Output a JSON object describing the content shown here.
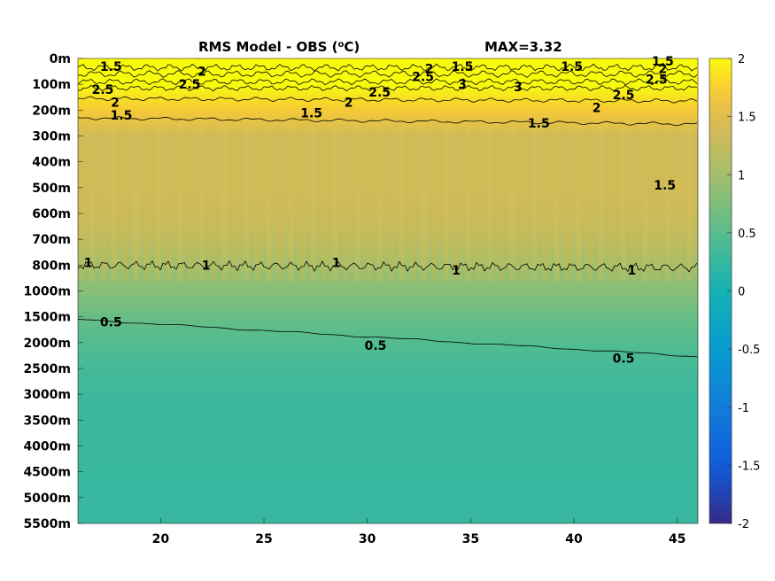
{
  "chart_data": {
    "type": "heatmap",
    "title_left": "RMS Model - OBS (",
    "title_unit_sup": "o",
    "title_unit_tail": "C)",
    "title_max": "MAX=3.32",
    "x_ticks": [
      "20",
      "25",
      "30",
      "35",
      "40",
      "45"
    ],
    "x_tick_values": [
      20,
      25,
      30,
      35,
      40,
      45
    ],
    "xlim": [
      16,
      46
    ],
    "y_ticks": [
      "0m",
      "100m",
      "200m",
      "300m",
      "400m",
      "500m",
      "600m",
      "700m",
      "800m",
      "1000m",
      "1500m",
      "2000m",
      "2500m",
      "3000m",
      "3500m",
      "4000m",
      "4500m",
      "5000m",
      "5500m"
    ],
    "colorbar": {
      "ticks": [
        "2",
        "1.5",
        "1",
        "0.5",
        "0",
        "-0.5",
        "-1",
        "-1.5",
        "-2"
      ],
      "tick_values": [
        2,
        1.5,
        1,
        0.5,
        0,
        -0.5,
        -1,
        -1.5,
        -2
      ],
      "clim": [
        -2,
        2
      ],
      "colormap": "parula"
    },
    "rms_profile": {
      "depth_levels": [
        "0m",
        "100m",
        "200m",
        "300m",
        "400m",
        "500m",
        "600m",
        "700m",
        "800m",
        "1000m",
        "1500m",
        "2000m",
        "2500m",
        "3000m",
        "3500m",
        "4000m",
        "4500m",
        "5000m",
        "5500m"
      ],
      "values": [
        2.2,
        2.6,
        1.7,
        1.35,
        1.35,
        1.35,
        1.3,
        1.2,
        1.0,
        0.8,
        0.6,
        0.45,
        0.35,
        0.3,
        0.28,
        0.27,
        0.26,
        0.25,
        0.25
      ]
    },
    "contour_labels": [
      {
        "text": "1.5",
        "x": 17.6,
        "depth_index": 0.3
      },
      {
        "text": "2",
        "x": 22.0,
        "depth_index": 0.5
      },
      {
        "text": "2.5",
        "x": 21.4,
        "depth_index": 1.0
      },
      {
        "text": "2.5",
        "x": 17.2,
        "depth_index": 1.2
      },
      {
        "text": "2",
        "x": 17.8,
        "depth_index": 1.7
      },
      {
        "text": "1.5",
        "x": 18.1,
        "depth_index": 2.2
      },
      {
        "text": "2.5",
        "x": 32.7,
        "depth_index": 0.7
      },
      {
        "text": "2",
        "x": 33.0,
        "depth_index": 0.4
      },
      {
        "text": "1.5",
        "x": 34.6,
        "depth_index": 0.3
      },
      {
        "text": "3",
        "x": 34.6,
        "depth_index": 1.0
      },
      {
        "text": "2.5",
        "x": 30.6,
        "depth_index": 1.3
      },
      {
        "text": "2",
        "x": 29.1,
        "depth_index": 1.7
      },
      {
        "text": "1.5",
        "x": 27.3,
        "depth_index": 2.1
      },
      {
        "text": "1.5",
        "x": 39.9,
        "depth_index": 0.3
      },
      {
        "text": "3",
        "x": 37.3,
        "depth_index": 1.1
      },
      {
        "text": "2.5",
        "x": 42.4,
        "depth_index": 1.4
      },
      {
        "text": "2",
        "x": 41.1,
        "depth_index": 1.9
      },
      {
        "text": "1.5",
        "x": 38.3,
        "depth_index": 2.5
      },
      {
        "text": "1.5",
        "x": 44.3,
        "depth_index": 0.1
      },
      {
        "text": "2",
        "x": 44.3,
        "depth_index": 0.4
      },
      {
        "text": "2.5",
        "x": 44.0,
        "depth_index": 0.8
      },
      {
        "text": "1.5",
        "x": 44.4,
        "depth_index": 4.9
      },
      {
        "text": "1",
        "x": 16.5,
        "depth_index": 7.9
      },
      {
        "text": "1",
        "x": 22.2,
        "depth_index": 8.0
      },
      {
        "text": "1",
        "x": 28.5,
        "depth_index": 7.9
      },
      {
        "text": "1",
        "x": 34.3,
        "depth_index": 8.2
      },
      {
        "text": "1",
        "x": 42.8,
        "depth_index": 8.2
      },
      {
        "text": "0.5",
        "x": 17.6,
        "depth_index": 10.2
      },
      {
        "text": "0.5",
        "x": 30.4,
        "depth_index": 11.1
      },
      {
        "text": "0.5",
        "x": 42.4,
        "depth_index": 11.6
      }
    ]
  }
}
